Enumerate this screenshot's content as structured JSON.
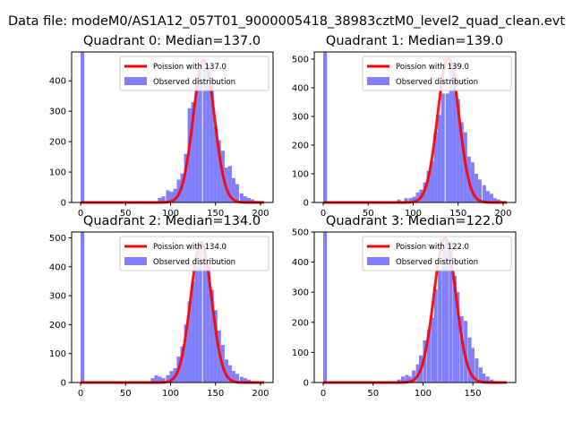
{
  "figure": {
    "suptitle": "Data file: modeM0/AS1A12_057T01_9000005418_38983cztM0_level2_quad_clean.evt"
  },
  "colors": {
    "histogram": "#8080ff",
    "poisson": "#ff0000",
    "axes": "#000000"
  },
  "chart_data": [
    {
      "type": "bar",
      "title": "Quadrant 0: Median=137.0",
      "xlim": [
        -10,
        214
      ],
      "ylim": [
        0,
        495
      ],
      "xticks": [
        0,
        50,
        100,
        150,
        200
      ],
      "yticks": [
        0,
        100,
        200,
        300,
        400
      ],
      "legend": {
        "placement": "upper-right",
        "entries": [
          "Poission with 137.0",
          "Observed distribution"
        ]
      },
      "series": [
        {
          "name": "Observed distribution",
          "kind": "histogram",
          "bin_width": 4.1,
          "bins": [
            {
              "x": 0,
              "y": 495
            },
            {
              "x": 86,
              "y": 15
            },
            {
              "x": 90,
              "y": 20
            },
            {
              "x": 95,
              "y": 40
            },
            {
              "x": 99,
              "y": 35
            },
            {
              "x": 103,
              "y": 45
            },
            {
              "x": 107,
              "y": 75
            },
            {
              "x": 111,
              "y": 95
            },
            {
              "x": 115,
              "y": 160
            },
            {
              "x": 119,
              "y": 310
            },
            {
              "x": 123,
              "y": 330
            },
            {
              "x": 127,
              "y": 390
            },
            {
              "x": 131,
              "y": 430
            },
            {
              "x": 136,
              "y": 470
            },
            {
              "x": 140,
              "y": 455
            },
            {
              "x": 144,
              "y": 410
            },
            {
              "x": 148,
              "y": 250
            },
            {
              "x": 152,
              "y": 205
            },
            {
              "x": 156,
              "y": 170
            },
            {
              "x": 160,
              "y": 115
            },
            {
              "x": 164,
              "y": 120
            },
            {
              "x": 168,
              "y": 80
            },
            {
              "x": 172,
              "y": 60
            },
            {
              "x": 177,
              "y": 30
            },
            {
              "x": 181,
              "y": 20
            },
            {
              "x": 185,
              "y": 15
            },
            {
              "x": 189,
              "y": 10
            },
            {
              "x": 193,
              "y": 5
            },
            {
              "x": 197,
              "y": 5
            }
          ]
        },
        {
          "name": "Poission with 137.0",
          "kind": "line",
          "mean": 137.0,
          "peak": 470,
          "x_range": [
            0,
            204
          ]
        }
      ]
    },
    {
      "type": "bar",
      "title": "Quadrant 1: Median=139.0",
      "xlim": [
        -10,
        214
      ],
      "ylim": [
        0,
        525
      ],
      "xticks": [
        0,
        50,
        100,
        150,
        200
      ],
      "yticks": [
        0,
        100,
        200,
        300,
        400,
        500
      ],
      "legend": {
        "placement": "upper-right",
        "entries": [
          "Poission with 139.0",
          "Observed distribution"
        ]
      },
      "series": [
        {
          "name": "Observed distribution",
          "kind": "histogram",
          "bin_width": 4.1,
          "bins": [
            {
              "x": 0,
              "y": 525
            },
            {
              "x": 82,
              "y": 10
            },
            {
              "x": 90,
              "y": 15
            },
            {
              "x": 95,
              "y": 15
            },
            {
              "x": 99,
              "y": 20
            },
            {
              "x": 103,
              "y": 35
            },
            {
              "x": 107,
              "y": 45
            },
            {
              "x": 111,
              "y": 70
            },
            {
              "x": 115,
              "y": 110
            },
            {
              "x": 119,
              "y": 145
            },
            {
              "x": 123,
              "y": 245
            },
            {
              "x": 127,
              "y": 305
            },
            {
              "x": 131,
              "y": 380
            },
            {
              "x": 136,
              "y": 380
            },
            {
              "x": 140,
              "y": 460
            },
            {
              "x": 144,
              "y": 480
            },
            {
              "x": 148,
              "y": 360
            },
            {
              "x": 152,
              "y": 280
            },
            {
              "x": 156,
              "y": 245
            },
            {
              "x": 160,
              "y": 160
            },
            {
              "x": 164,
              "y": 140
            },
            {
              "x": 168,
              "y": 100
            },
            {
              "x": 172,
              "y": 80
            },
            {
              "x": 177,
              "y": 60
            },
            {
              "x": 181,
              "y": 40
            },
            {
              "x": 185,
              "y": 30
            },
            {
              "x": 189,
              "y": 15
            },
            {
              "x": 193,
              "y": 10
            },
            {
              "x": 197,
              "y": 5
            }
          ]
        },
        {
          "name": "Poission with 139.0",
          "kind": "line",
          "mean": 139.0,
          "peak": 505,
          "x_range": [
            0,
            204
          ]
        }
      ]
    },
    {
      "type": "bar",
      "title": "Quadrant 2: Median=134.0",
      "xlim": [
        -10,
        214
      ],
      "ylim": [
        0,
        520
      ],
      "xticks": [
        0,
        50,
        100,
        150,
        200
      ],
      "yticks": [
        0,
        100,
        200,
        300,
        400,
        500
      ],
      "legend": {
        "placement": "upper-right",
        "entries": [
          "Poission with 134.0",
          "Observed distribution"
        ]
      },
      "series": [
        {
          "name": "Observed distribution",
          "kind": "histogram",
          "bin_width": 4.1,
          "bins": [
            {
              "x": 0,
              "y": 520
            },
            {
              "x": 78,
              "y": 15
            },
            {
              "x": 82,
              "y": 25
            },
            {
              "x": 86,
              "y": 20
            },
            {
              "x": 90,
              "y": 15
            },
            {
              "x": 95,
              "y": 25
            },
            {
              "x": 99,
              "y": 40
            },
            {
              "x": 103,
              "y": 50
            },
            {
              "x": 107,
              "y": 90
            },
            {
              "x": 111,
              "y": 125
            },
            {
              "x": 115,
              "y": 200
            },
            {
              "x": 119,
              "y": 280
            },
            {
              "x": 123,
              "y": 350
            },
            {
              "x": 127,
              "y": 410
            },
            {
              "x": 131,
              "y": 485
            },
            {
              "x": 136,
              "y": 460
            },
            {
              "x": 140,
              "y": 410
            },
            {
              "x": 144,
              "y": 320
            },
            {
              "x": 148,
              "y": 250
            },
            {
              "x": 152,
              "y": 180
            },
            {
              "x": 156,
              "y": 130
            },
            {
              "x": 160,
              "y": 80
            },
            {
              "x": 164,
              "y": 60
            },
            {
              "x": 168,
              "y": 40
            },
            {
              "x": 172,
              "y": 30
            },
            {
              "x": 177,
              "y": 20
            },
            {
              "x": 181,
              "y": 15
            },
            {
              "x": 185,
              "y": 10
            },
            {
              "x": 189,
              "y": 5
            }
          ]
        },
        {
          "name": "Poission with 134.0",
          "kind": "line",
          "mean": 134.0,
          "peak": 485,
          "x_range": [
            0,
            204
          ]
        }
      ]
    },
    {
      "type": "bar",
      "title": "Quadrant 3: Median=122.0",
      "xlim": [
        -9,
        193
      ],
      "ylim": [
        0,
        500
      ],
      "xticks": [
        0,
        50,
        100,
        150
      ],
      "yticks": [
        0,
        100,
        200,
        300,
        400,
        500
      ],
      "legend": {
        "placement": "upper-right",
        "entries": [
          "Poission with 122.0",
          "Observed distribution"
        ]
      },
      "series": [
        {
          "name": "Observed distribution",
          "kind": "histogram",
          "bin_width": 3.7,
          "bins": [
            {
              "x": 0,
              "y": 500
            },
            {
              "x": 74,
              "y": 10
            },
            {
              "x": 78,
              "y": 20
            },
            {
              "x": 82,
              "y": 25
            },
            {
              "x": 85,
              "y": 20
            },
            {
              "x": 89,
              "y": 40
            },
            {
              "x": 93,
              "y": 60
            },
            {
              "x": 96,
              "y": 90
            },
            {
              "x": 100,
              "y": 140
            },
            {
              "x": 104,
              "y": 175
            },
            {
              "x": 108,
              "y": 215
            },
            {
              "x": 111,
              "y": 310
            },
            {
              "x": 115,
              "y": 375
            },
            {
              "x": 119,
              "y": 440
            },
            {
              "x": 122,
              "y": 480
            },
            {
              "x": 126,
              "y": 470
            },
            {
              "x": 130,
              "y": 355
            },
            {
              "x": 133,
              "y": 300
            },
            {
              "x": 137,
              "y": 220
            },
            {
              "x": 141,
              "y": 205
            },
            {
              "x": 145,
              "y": 150
            },
            {
              "x": 148,
              "y": 115
            },
            {
              "x": 152,
              "y": 80
            },
            {
              "x": 156,
              "y": 50
            },
            {
              "x": 159,
              "y": 30
            },
            {
              "x": 163,
              "y": 20
            },
            {
              "x": 167,
              "y": 10
            },
            {
              "x": 170,
              "y": 5
            }
          ]
        },
        {
          "name": "Poission with 122.0",
          "kind": "line",
          "mean": 122.0,
          "peak": 480,
          "x_range": [
            0,
            184
          ]
        }
      ]
    }
  ]
}
